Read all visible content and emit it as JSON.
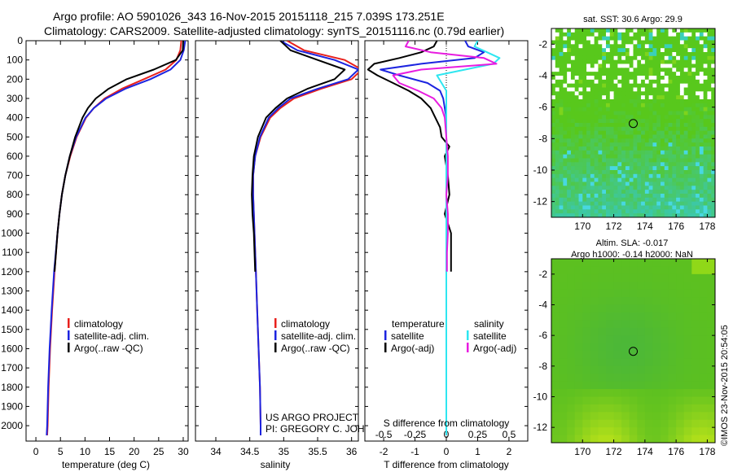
{
  "title": {
    "line1": "Argo profile: AO 5901026_343 16-Nov-2015 20151118_215 7.039S 173.251E",
    "line2": "Climatology: CARS2009. Satellite-adjusted climatology: synTS_20151116.nc (0.79d earlier)"
  },
  "credits": {
    "project": "US ARGO PROJECT",
    "pi": "PI: GREGORY C. JOHNSON",
    "watermark": "©IMOS 23-Nov-2015 20:54:05"
  },
  "colors": {
    "climatology": "#e8201c",
    "satellite": "#1c24e0",
    "argo": "#000000",
    "sal_satellite": "#2ee6f0",
    "sal_argo": "#e81ce0"
  },
  "chart_data": [
    {
      "id": "temperature",
      "type": "line",
      "xlabel": "temperature (deg C)",
      "xlim": [
        -2,
        31
      ],
      "xticks": [
        "0",
        "5",
        "10",
        "15",
        "20",
        "25",
        "30"
      ],
      "xtick_values": [
        0,
        5,
        10,
        15,
        20,
        25,
        30
      ],
      "ylim": [
        0,
        2080
      ],
      "yticks": [
        "0",
        "100",
        "200",
        "300",
        "400",
        "500",
        "600",
        "700",
        "800",
        "900",
        "1000",
        "1100",
        "1200",
        "1300",
        "1400",
        "1500",
        "1600",
        "1700",
        "1800",
        "1900",
        "2000"
      ],
      "ytick_values": [
        0,
        100,
        200,
        300,
        400,
        500,
        600,
        700,
        800,
        900,
        1000,
        1100,
        1200,
        1300,
        1400,
        1500,
        1600,
        1700,
        1800,
        1900,
        2000
      ],
      "legend": [
        "climatology",
        "satellite-adj. clim.",
        "Argo(..raw -QC)"
      ],
      "series": [
        {
          "name": "climatology",
          "color_key": "climatology",
          "depth": [
            0,
            50,
            100,
            150,
            200,
            250,
            300,
            350,
            400,
            500,
            600,
            700,
            800,
            900,
            1000,
            1200,
            1400,
            1600,
            1800,
            2000,
            2050
          ],
          "values": [
            29.6,
            29.4,
            28.6,
            26.4,
            22.0,
            17.5,
            14.0,
            11.8,
            10.2,
            8.3,
            7.0,
            6.0,
            5.3,
            4.8,
            4.4,
            3.8,
            3.3,
            2.9,
            2.6,
            2.4,
            2.3
          ]
        },
        {
          "name": "satellite-adj. clim.",
          "color_key": "satellite",
          "depth": [
            0,
            50,
            100,
            150,
            200,
            250,
            300,
            350,
            400,
            500,
            600,
            700,
            800,
            900,
            1000,
            1200,
            1400,
            1600,
            1800,
            2000,
            2050
          ],
          "values": [
            30.4,
            30.1,
            29.4,
            27.4,
            23.3,
            18.2,
            14.3,
            11.8,
            10.1,
            8.2,
            6.9,
            6.0,
            5.3,
            4.8,
            4.4,
            3.7,
            3.2,
            2.8,
            2.5,
            2.3,
            2.2
          ]
        },
        {
          "name": "Argo(..raw -QC)",
          "color_key": "argo",
          "depth": [
            0,
            50,
            100,
            150,
            200,
            250,
            300,
            350,
            400,
            500,
            600,
            700,
            800,
            900,
            1000,
            1100,
            1200
          ],
          "values": [
            30.0,
            29.9,
            28.5,
            24.0,
            18.5,
            14.8,
            12.2,
            10.6,
            9.5,
            8.0,
            6.9,
            6.0,
            5.3,
            4.8,
            4.4,
            4.1,
            3.8
          ]
        }
      ]
    },
    {
      "id": "salinity",
      "type": "line",
      "xlabel": "salinity",
      "xlim": [
        33.7,
        36.1
      ],
      "xticks": [
        "34",
        "34.5",
        "35",
        "35.5",
        "36"
      ],
      "xtick_values": [
        34,
        34.5,
        35,
        35.5,
        36
      ],
      "ylim": [
        0,
        2080
      ],
      "legend": [
        "climatology",
        "satellite-adj. clim.",
        "Argo(..raw -QC)"
      ],
      "series": [
        {
          "name": "climatology",
          "color_key": "climatology",
          "depth": [
            0,
            50,
            100,
            150,
            200,
            250,
            300,
            350,
            400,
            500,
            600,
            700,
            800,
            900,
            1000,
            1200,
            1400,
            1600,
            1800,
            2000,
            2050
          ],
          "values": [
            35.05,
            35.3,
            35.9,
            36.15,
            36.0,
            35.55,
            35.15,
            34.95,
            34.8,
            34.66,
            34.58,
            34.55,
            34.55,
            34.56,
            34.57,
            34.59,
            34.61,
            34.63,
            34.65,
            34.66,
            34.66
          ]
        },
        {
          "name": "satellite-adj. clim.",
          "color_key": "satellite",
          "depth": [
            0,
            50,
            100,
            150,
            200,
            250,
            300,
            350,
            400,
            500,
            600,
            700,
            800,
            900,
            1000,
            1200,
            1400,
            1600,
            1800,
            2000,
            2050
          ],
          "values": [
            34.95,
            35.2,
            35.75,
            36.1,
            35.95,
            35.5,
            35.1,
            34.92,
            34.78,
            34.65,
            34.58,
            34.55,
            34.55,
            34.56,
            34.57,
            34.59,
            34.61,
            34.63,
            34.65,
            34.66,
            34.66
          ]
        },
        {
          "name": "Argo(..raw -QC)",
          "color_key": "argo",
          "depth": [
            0,
            50,
            100,
            150,
            200,
            250,
            300,
            350,
            400,
            500,
            600,
            700,
            800,
            900,
            1000,
            1100,
            1200
          ],
          "values": [
            34.95,
            35.1,
            35.5,
            35.9,
            35.75,
            35.35,
            35.05,
            34.88,
            34.74,
            34.62,
            34.56,
            34.54,
            34.53,
            34.54,
            34.56,
            34.57,
            34.58
          ]
        }
      ]
    },
    {
      "id": "difference",
      "type": "line",
      "xlabel": "T difference from climatology",
      "xlabel_top": "S difference from climatology",
      "xlim": [
        -2.6,
        2.6
      ],
      "xticks": [
        "-2",
        "-1",
        "0",
        "1",
        "2"
      ],
      "xtick_values": [
        -2,
        -1,
        0,
        1,
        2
      ],
      "xticks_top": [
        "-0.5",
        "-0.25",
        "0",
        "0.25",
        "0.5"
      ],
      "xticks_top_positions": [
        -2,
        -1,
        0,
        1,
        2
      ],
      "ylim": [
        0,
        2080
      ],
      "legend_headers": [
        "temperature",
        "salinity"
      ],
      "legend": [
        "satellite",
        "Argo(-adj)",
        "satellite",
        "Argo(-adj)"
      ],
      "series": [
        {
          "name": "temperature satellite",
          "color_key": "satellite",
          "depth": [
            0,
            30,
            60,
            90,
            120,
            150,
            180,
            220,
            260,
            300,
            350,
            400,
            500,
            700,
            1000,
            1500,
            2050
          ],
          "values": [
            0.6,
            0.7,
            1.2,
            0.9,
            -0.8,
            -2.1,
            -1.5,
            -0.6,
            -0.2,
            -0.1,
            -0.05,
            0,
            0,
            0,
            0,
            0,
            0
          ]
        },
        {
          "name": "temperature Argo(-adj)",
          "color_key": "argo",
          "depth": [
            0,
            30,
            60,
            90,
            120,
            150,
            180,
            220,
            260,
            300,
            350,
            400,
            450,
            500,
            550,
            600,
            700,
            800,
            900,
            1000,
            1100,
            1200
          ],
          "values": [
            -0.3,
            -0.4,
            -0.8,
            -1.5,
            -2.3,
            -2.5,
            -2.2,
            -1.7,
            -1.2,
            -0.8,
            -0.5,
            -0.35,
            -0.2,
            -0.15,
            0.1,
            -0.05,
            0.05,
            0.1,
            -0.05,
            0.15,
            0.15,
            0.15
          ]
        },
        {
          "name": "salinity satellite",
          "color_key": "sal_satellite",
          "depth": [
            0,
            30,
            60,
            90,
            120,
            150,
            180,
            220,
            260,
            300,
            350,
            400,
            500,
            700,
            1000,
            1500,
            2050
          ],
          "values": [
            1.0,
            0.9,
            1.3,
            1.7,
            1.5,
            0.6,
            -0.3,
            -0.15,
            0,
            0,
            0,
            0,
            0,
            0,
            0,
            0,
            0
          ]
        },
        {
          "name": "salinity Argo(-adj)",
          "color_key": "sal_argo",
          "depth": [
            0,
            30,
            60,
            90,
            120,
            150,
            180,
            220,
            260,
            300,
            350,
            400,
            500,
            600,
            700,
            800,
            900,
            1000,
            1100,
            1200
          ],
          "values": [
            -1.2,
            -1.3,
            -0.5,
            1.2,
            1.6,
            -0.8,
            -1.7,
            -1.5,
            -0.9,
            -0.4,
            -0.15,
            -0.05,
            0,
            0.05,
            0.05,
            0,
            0.05,
            0.05,
            0.02,
            0.02
          ]
        }
      ]
    },
    {
      "id": "sst_map",
      "type": "heatmap",
      "title": "sat. SST: 30.6 Argo: 29.9",
      "xlim": [
        168,
        178.5
      ],
      "ylim": [
        -13,
        -1
      ],
      "xticks": [
        "170",
        "172",
        "174",
        "176",
        "178"
      ],
      "xtick_values": [
        170,
        172,
        174,
        176,
        178
      ],
      "yticks": [
        "-2",
        "-4",
        "-6",
        "-8",
        "-10",
        "-12"
      ],
      "ytick_values": [
        -2,
        -4,
        -6,
        -8,
        -10,
        -12
      ],
      "marker": {
        "lon": 173.251,
        "lat": -7.039
      }
    },
    {
      "id": "sla_map",
      "type": "heatmap",
      "title_line1": "Altim. SLA: -0.017",
      "title_line2": "Argo h1000: -0.14 h2000: NaN",
      "xlim": [
        168,
        178.5
      ],
      "ylim": [
        -13,
        -1
      ],
      "xticks": [
        "170",
        "172",
        "174",
        "176",
        "178"
      ],
      "xtick_values": [
        170,
        172,
        174,
        176,
        178
      ],
      "yticks": [
        "-2",
        "-4",
        "-6",
        "-8",
        "-10",
        "-12"
      ],
      "ytick_values": [
        -2,
        -4,
        -6,
        -8,
        -10,
        -12
      ],
      "marker": {
        "lon": 173.251,
        "lat": -7.039
      }
    }
  ]
}
